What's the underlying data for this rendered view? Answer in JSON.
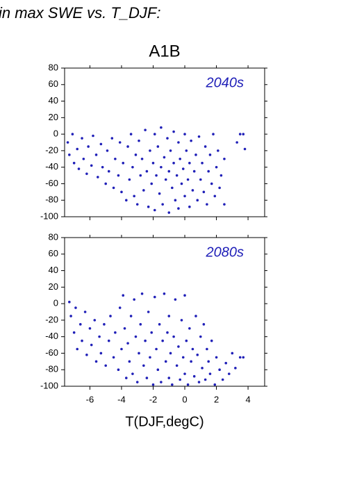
{
  "header": {
    "text": "in max SWE vs. T_DJF:",
    "title": "A1B"
  },
  "chart_data": [
    {
      "type": "scatter",
      "annotation": "2040s",
      "color": "#2020b8",
      "xlim": [
        -7.6,
        5.05
      ],
      "xticks": [
        -6,
        -4,
        -2,
        0,
        2,
        4
      ],
      "ylim": [
        -100,
        80
      ],
      "yticks": [
        -100,
        -80,
        -60,
        -40,
        -20,
        0,
        20,
        40,
        60,
        80
      ],
      "x": [
        -7.4,
        -7.3,
        -7.1,
        -7.0,
        -6.8,
        -6.7,
        -6.5,
        -6.4,
        -6.2,
        -6.1,
        -5.9,
        -5.8,
        -5.6,
        -5.5,
        -5.3,
        -5.2,
        -5.0,
        -4.9,
        -4.8,
        -4.6,
        -4.5,
        -4.4,
        -4.2,
        -4.1,
        -4.0,
        -3.9,
        -3.7,
        -3.6,
        -3.5,
        -3.4,
        -3.3,
        -3.2,
        -3.1,
        -3.0,
        -2.9,
        -2.8,
        -2.7,
        -2.6,
        -2.5,
        -2.4,
        -2.3,
        -2.2,
        -2.1,
        -2.0,
        -1.9,
        -1.9,
        -1.8,
        -1.7,
        -1.6,
        -1.5,
        -1.5,
        -1.4,
        -1.3,
        -1.2,
        -1.1,
        -1.0,
        -1.0,
        -0.9,
        -0.8,
        -0.7,
        -0.7,
        -0.6,
        -0.5,
        -0.4,
        -0.4,
        -0.3,
        -0.2,
        -0.1,
        0.0,
        0.0,
        0.1,
        0.2,
        0.3,
        0.3,
        0.4,
        0.5,
        0.6,
        0.7,
        0.8,
        0.9,
        1.0,
        1.1,
        1.2,
        1.3,
        1.4,
        1.5,
        1.6,
        1.7,
        1.8,
        1.9,
        2.0,
        2.1,
        2.2,
        2.3,
        2.5,
        2.5,
        3.5,
        3.8,
        3.3,
        3.7
      ],
      "values": [
        -10,
        -25,
        0,
        -35,
        -18,
        -42,
        -5,
        -30,
        -48,
        -15,
        -38,
        -2,
        -25,
        -52,
        -12,
        -40,
        -60,
        -20,
        -45,
        -5,
        -65,
        -30,
        -50,
        -10,
        -70,
        -35,
        -80,
        -15,
        -55,
        0,
        -40,
        -75,
        -25,
        -85,
        -8,
        -50,
        -30,
        -68,
        5,
        -45,
        -88,
        -20,
        -60,
        -35,
        -92,
        0,
        -50,
        -15,
        -72,
        -40,
        8,
        -85,
        -28,
        -55,
        -5,
        -95,
        -45,
        -20,
        -65,
        -35,
        3,
        -80,
        -50,
        -10,
        -90,
        -30,
        -60,
        -42,
        -75,
        0,
        -20,
        -55,
        -88,
        -35,
        -8,
        -68,
        -45,
        -25,
        -80,
        -3,
        -55,
        -35,
        -70,
        -15,
        -85,
        -45,
        -25,
        -60,
        0,
        -75,
        -40,
        -20,
        -65,
        -50,
        -30,
        -85,
        0,
        -18,
        -10,
        0
      ]
    },
    {
      "type": "scatter",
      "annotation": "2080s",
      "color": "#2020b8",
      "xlabel": "T(DJF,degC)",
      "xlim": [
        -7.6,
        5.05
      ],
      "xticks": [
        -6,
        -4,
        -2,
        0,
        2,
        4
      ],
      "ylim": [
        -100,
        80
      ],
      "yticks": [
        -100,
        -80,
        -60,
        -40,
        -20,
        0,
        20,
        40,
        60,
        80
      ],
      "x": [
        -7.3,
        -7.2,
        -7.0,
        -6.9,
        -6.8,
        -6.6,
        -6.5,
        -6.3,
        -6.2,
        -6.0,
        -5.9,
        -5.7,
        -5.6,
        -5.4,
        -5.3,
        -5.1,
        -5.0,
        -4.8,
        -4.7,
        -4.5,
        -4.4,
        -4.2,
        -4.1,
        -4.0,
        -3.9,
        -3.8,
        -3.7,
        -3.6,
        -3.5,
        -3.4,
        -3.3,
        -3.2,
        -3.1,
        -3.0,
        -2.9,
        -2.8,
        -2.7,
        -2.6,
        -2.5,
        -2.4,
        -2.3,
        -2.2,
        -2.1,
        -2.0,
        -1.9,
        -1.8,
        -1.7,
        -1.6,
        -1.5,
        -1.4,
        -1.3,
        -1.2,
        -1.1,
        -1.0,
        -1.0,
        -0.9,
        -0.8,
        -0.7,
        -0.6,
        -0.5,
        -0.4,
        -0.3,
        -0.2,
        -0.1,
        0.0,
        0.0,
        0.1,
        0.2,
        0.3,
        0.4,
        0.5,
        0.6,
        0.7,
        0.8,
        0.9,
        1.0,
        1.1,
        1.2,
        1.3,
        1.4,
        1.5,
        1.6,
        1.7,
        1.9,
        2.0,
        2.2,
        2.4,
        2.6,
        2.8,
        3.0,
        3.2,
        3.5,
        3.7
      ],
      "values": [
        2,
        -15,
        -35,
        -5,
        -55,
        -25,
        -45,
        -10,
        -62,
        -30,
        -50,
        -20,
        -70,
        -40,
        -60,
        -25,
        -75,
        -45,
        -15,
        -65,
        -35,
        -80,
        -5,
        -55,
        10,
        -30,
        -90,
        -48,
        -70,
        -15,
        -85,
        5,
        -40,
        -95,
        -60,
        -25,
        12,
        -75,
        -45,
        -90,
        -10,
        -65,
        -35,
        -98,
        8,
        -55,
        -80,
        -25,
        -95,
        -45,
        12,
        -70,
        -35,
        -90,
        -15,
        -60,
        -98,
        -40,
        5,
        -75,
        -52,
        -92,
        -20,
        -65,
        -85,
        10,
        -45,
        -98,
        -30,
        -70,
        -55,
        -88,
        -15,
        -62,
        -95,
        -40,
        -78,
        -25,
        -92,
        -55,
        -70,
        -85,
        -45,
        -98,
        -65,
        -80,
        -92,
        -72,
        -85,
        -60,
        -78,
        -65,
        -65
      ]
    }
  ]
}
